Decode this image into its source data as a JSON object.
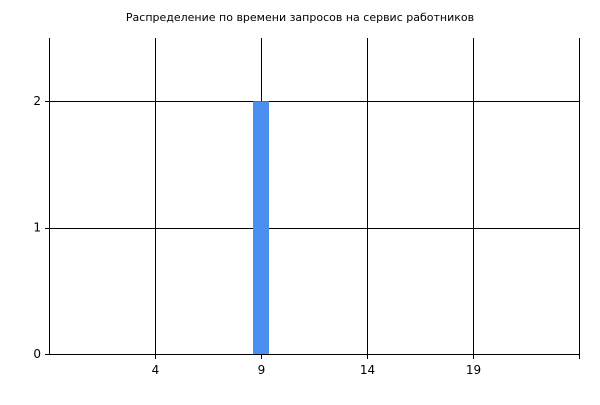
{
  "chart_data": {
    "type": "bar",
    "title": "Распределение по времени запросов на сервис работников",
    "xlabel": "",
    "ylabel": "",
    "x_ticks": [
      4,
      9,
      14,
      19
    ],
    "xlim": [
      -1,
      24
    ],
    "ylim": [
      0,
      2.5
    ],
    "y_ticks": [
      0,
      1,
      2
    ],
    "grid": true,
    "bars": [
      {
        "x": 9,
        "value": 2
      }
    ],
    "colors": {
      "bar": "#4a8ff0",
      "grid": "#000000",
      "axis": "#000000"
    }
  }
}
